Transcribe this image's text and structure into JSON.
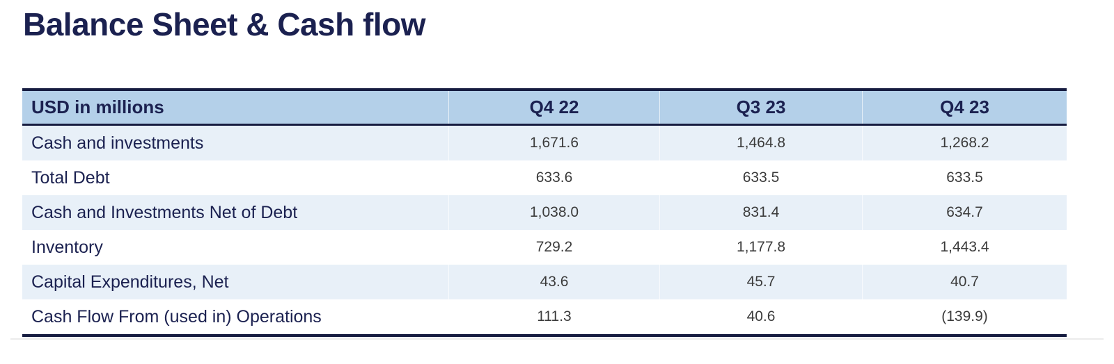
{
  "page": {
    "title": "Balance Sheet & Cash flow"
  },
  "colors": {
    "navy_text": "#1b2150",
    "border_navy": "#161c40",
    "header_bg": "#b4d0e9",
    "band_row_bg": "#e8f0f8",
    "value_text": "#3b3b3b"
  },
  "table": {
    "unit_label": "USD in millions",
    "columns": [
      "Q4 22",
      "Q3 23",
      "Q4 23"
    ],
    "rows": [
      {
        "label": "Cash and investments",
        "values": [
          "1,671.6",
          "1,464.8",
          "1,268.2"
        ]
      },
      {
        "label": "Total Debt",
        "values": [
          "633.6",
          "633.5",
          "633.5"
        ]
      },
      {
        "label": "Cash and Investments Net of Debt",
        "values": [
          "1,038.0",
          "831.4",
          "634.7"
        ]
      },
      {
        "label": "Inventory",
        "values": [
          "729.2",
          "1,177.8",
          "1,443.4"
        ]
      },
      {
        "label": "Capital Expenditures, Net",
        "values": [
          "43.6",
          "45.7",
          "40.7"
        ]
      },
      {
        "label": "Cash Flow From (used in) Operations",
        "values": [
          "111.3",
          "40.6",
          "(139.9)"
        ]
      }
    ]
  }
}
